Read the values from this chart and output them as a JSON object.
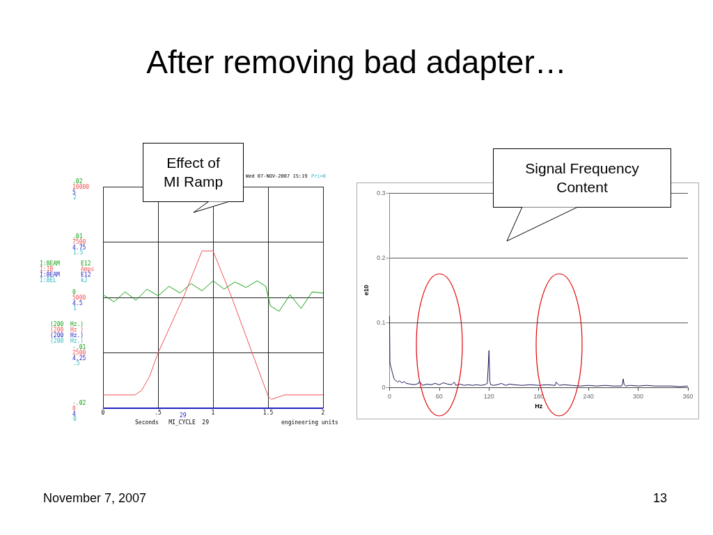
{
  "chart_data": [
    {
      "type": "line",
      "title": "After removing bad adapter…",
      "xlim": [
        0,
        2
      ],
      "xticks": [
        0,
        {
          "value": 0.5,
          "label": ".5"
        },
        1,
        1.5,
        2
      ],
      "ylim": [
        -0.02,
        0.02
      ],
      "yticks": [
        {
          "value": 0.02,
          "label": ".02"
        },
        {
          "value": 0.01,
          "label": ".01"
        },
        0,
        {
          "value": -0.01,
          "label": "-.01"
        },
        {
          "value": -0.02,
          "label": "-.02"
        }
      ],
      "y2lim": [
        0,
        10000
      ],
      "y2ticks": [
        10000,
        7500,
        5000,
        2500,
        0
      ],
      "y3lim": [
        4,
        5
      ],
      "y3ticks": [
        5,
        4.75,
        4.5,
        4.25,
        4
      ],
      "grid": true,
      "legend": "left",
      "marker": "none",
      "series": [
        {
          "name": "I:BEAM",
          "color": "#10a010",
          "axis": "y",
          "x": [
            0,
            0.1,
            0.2,
            0.3,
            0.4,
            0.5,
            0.6,
            0.7,
            0.8,
            0.9,
            1,
            1.1,
            1.2,
            1.3,
            1.4,
            1.48,
            1.52,
            1.6,
            1.7,
            1.8,
            1.9,
            2
          ],
          "values": [
            0.0005,
            -0.0008,
            0.001,
            -0.0005,
            0.0015,
            0.0003,
            0.002,
            0.0008,
            0.0025,
            0.0012,
            0.003,
            0.0015,
            0.0028,
            0.0018,
            0.003,
            0.002,
            -0.0015,
            -0.0025,
            0.0005,
            -0.002,
            0.001,
            0.0008
          ]
        },
        {
          "name": "I:IB",
          "color": "#f05050",
          "axis": "y2",
          "x": [
            0,
            0.29,
            0.35,
            0.42,
            0.5,
            0.73,
            0.9,
            1.0,
            1.17,
            1.5,
            1.53,
            1.65,
            2
          ],
          "values": [
            600,
            600,
            800,
            1400,
            2500,
            5000,
            7100,
            7100,
            5000,
            550,
            400,
            600,
            600
          ]
        },
        {
          "name": "I:BEAM",
          "color": "#2020c0",
          "axis": "y3",
          "x": [
            0,
            2
          ],
          "values": [
            4,
            4
          ]
        }
      ],
      "annotations": [
        "E12",
        "Amps",
        "E12",
        "kJ",
        "(200  Hz.)",
        "(200  Hz )",
        "(200  Hz.)",
        "(200  Hz.)",
        "29",
        "Seconds   MI_CYCLE  29",
        "engineering units",
        "Wed 07-NOV-2007 15:19",
        "Pri=0",
        "Effect of MI Ramp",
        "November 7, 2007",
        "13",
        "I:BEL",
        "2",
        "1.5",
        "1",
        ".5",
        "0"
      ]
    },
    {
      "type": "line",
      "xlabel": "Hz",
      "ylabel": "e10",
      "xlim": [
        0,
        360
      ],
      "xticks": [
        0,
        60,
        120,
        180,
        240,
        300,
        360
      ],
      "ylim": [
        0,
        0.3
      ],
      "yticks": [
        0,
        0.1,
        0.2,
        0.3
      ],
      "grid": "y",
      "marker": "none",
      "series": [
        {
          "color": "#1a1a5a",
          "x": [
            0,
            0.5,
            1,
            2,
            3,
            4,
            5,
            6,
            8,
            10,
            12,
            15,
            18,
            20,
            25,
            30,
            35,
            36,
            40,
            45,
            50,
            55,
            60,
            65,
            70,
            75,
            78,
            80,
            85,
            90,
            95,
            100,
            105,
            110,
            115,
            118,
            119,
            120,
            121,
            122,
            125,
            130,
            135,
            140,
            145,
            150,
            160,
            170,
            180,
            190,
            200,
            201,
            205,
            210,
            220,
            230,
            240,
            250,
            260,
            270,
            280,
            281,
            282,
            283,
            285,
            290,
            300,
            310,
            320,
            330,
            340,
            350,
            360
          ],
          "values": [
            0.11,
            0.04,
            0.035,
            0.03,
            0.025,
            0.02,
            0.015,
            0.012,
            0.01,
            0.008,
            0.01,
            0.007,
            0.009,
            0.006,
            0.005,
            0.004,
            0.006,
            0.009,
            0.003,
            0.005,
            0.004,
            0.006,
            0.004,
            0.007,
            0.005,
            0.004,
            0.008,
            0.003,
            0.005,
            0.003,
            0.004,
            0.003,
            0.004,
            0.003,
            0.004,
            0.006,
            0.03,
            0.057,
            0.01,
            0.004,
            0.003,
            0.004,
            0.006,
            0.003,
            0.005,
            0.004,
            0.003,
            0.004,
            0.003,
            0.004,
            0.003,
            0.008,
            0.003,
            0.004,
            0.003,
            0.002,
            0.003,
            0.002,
            0.003,
            0.002,
            0.002,
            0.006,
            0.013,
            0.004,
            0.002,
            0.003,
            0.002,
            0.003,
            0.002,
            0.002,
            0.002,
            0.001,
            0.002
          ]
        }
      ],
      "annotations": [
        "Signal Frequency Content"
      ]
    }
  ]
}
